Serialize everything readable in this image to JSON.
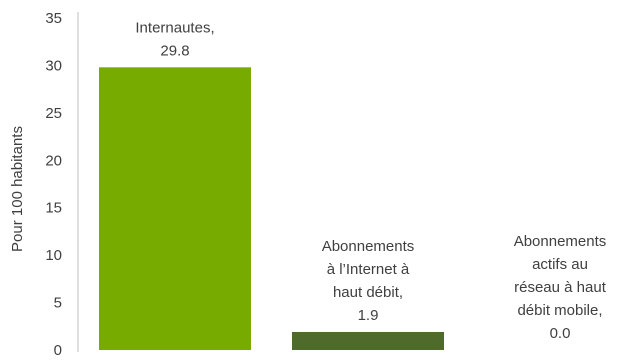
{
  "chart_data": {
    "type": "bar",
    "ylabel": "Pour 100 habitants",
    "ylim": [
      0,
      35
    ],
    "yticks": [
      0,
      5,
      10,
      15,
      20,
      25,
      30,
      35
    ],
    "grid": false,
    "legend": "none",
    "categories": [
      "Internautes,",
      "Abonnements à l’Internet à haut débit,",
      "Abonnements actifs au réseau à haut débit mobile,"
    ],
    "values": [
      29.8,
      1.9,
      0.0
    ],
    "data_labels": [
      [
        "Internautes,",
        "29.8"
      ],
      [
        "Abonnements",
        "à l’Internet à",
        "haut débit,",
        "1.9"
      ],
      [
        "Abonnements",
        "actifs au",
        "réseau à haut",
        "débit mobile,",
        "0.0"
      ]
    ],
    "colors": [
      "#77ab00",
      "#4e6b2c",
      "#c7d96e"
    ]
  }
}
